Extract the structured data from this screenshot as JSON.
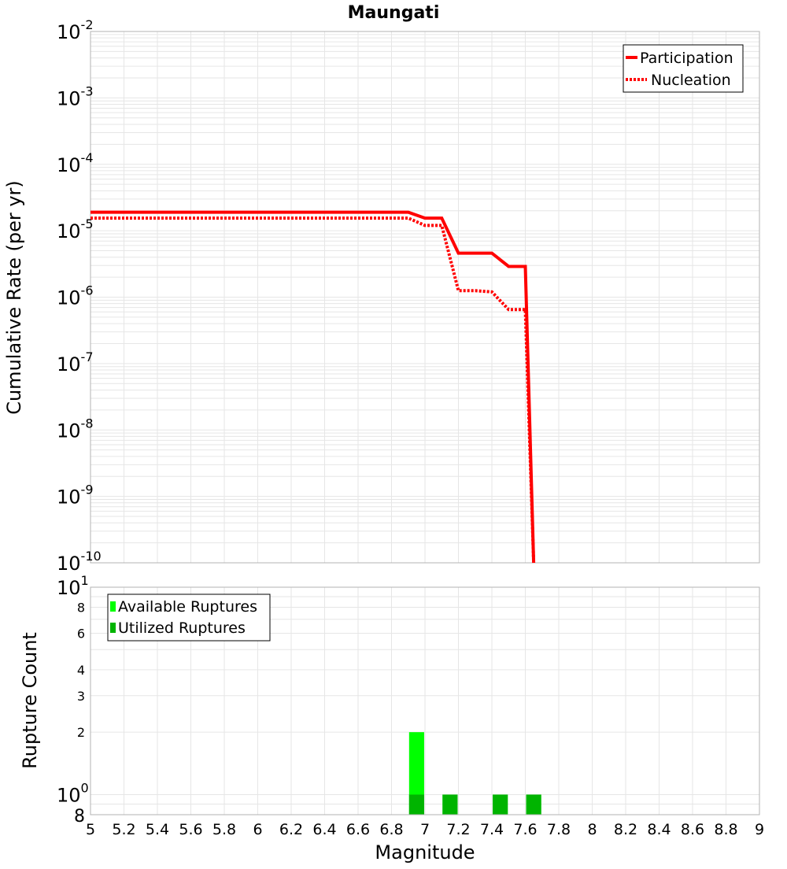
{
  "title": "Maungati",
  "colors": {
    "participation": "#ff0000",
    "nucleation": "#ff0000",
    "available": "#00ff00",
    "utilized": "#00b400",
    "grid": "#e6e6e6",
    "frame": "#b3b3b3"
  },
  "chart_data": [
    {
      "type": "line",
      "title": "Maungati",
      "xlabel": "",
      "ylabel": "Cumulative Rate (per yr)",
      "yscale": "log",
      "xlim": [
        5,
        9
      ],
      "ylim": [
        1e-10,
        0.01
      ],
      "grid": true,
      "legend_position": "top-right",
      "y_tick_labels": [
        {
          "base": "10",
          "exp": "-10"
        },
        {
          "base": "10",
          "exp": "-9"
        },
        {
          "base": "10",
          "exp": "-8"
        },
        {
          "base": "10",
          "exp": "-7"
        },
        {
          "base": "10",
          "exp": "-6"
        },
        {
          "base": "10",
          "exp": "-5"
        },
        {
          "base": "10",
          "exp": "-4"
        },
        {
          "base": "10",
          "exp": "-3"
        },
        {
          "base": "10",
          "exp": "-2"
        }
      ],
      "series": [
        {
          "name": "Participation",
          "style": "solid",
          "x": [
            5.0,
            6.9,
            7.0,
            7.1,
            7.2,
            7.3,
            7.4,
            7.5,
            7.6,
            7.65
          ],
          "y": [
            1.9e-05,
            1.9e-05,
            1.55e-05,
            1.55e-05,
            4.6e-06,
            4.6e-06,
            4.6e-06,
            2.9e-06,
            2.9e-06,
            1e-10
          ]
        },
        {
          "name": "Nucleation",
          "style": "dotted",
          "x": [
            5.0,
            6.9,
            7.0,
            7.1,
            7.2,
            7.3,
            7.4,
            7.5,
            7.6,
            7.65
          ],
          "y": [
            1.55e-05,
            1.55e-05,
            1.2e-05,
            1.2e-05,
            1.25e-06,
            1.25e-06,
            1.2e-06,
            6.5e-07,
            6.5e-07,
            1e-10
          ]
        }
      ]
    },
    {
      "type": "bar",
      "xlabel": "Magnitude",
      "ylabel": "Rupture Count",
      "yscale": "log",
      "xlim": [
        5,
        9
      ],
      "ylim": [
        0.8,
        10
      ],
      "grid": true,
      "legend_position": "top-left",
      "x_ticks": [
        "5",
        "5.2",
        "5.4",
        "5.6",
        "5.8",
        "6",
        "6.2",
        "6.4",
        "6.6",
        "6.8",
        "7",
        "7.2",
        "7.4",
        "7.6",
        "7.8",
        "8",
        "8.2",
        "8.4",
        "8.6",
        "8.8",
        "9"
      ],
      "y_minor_labels": [
        {
          "value": 2,
          "label": "2"
        },
        {
          "value": 3,
          "label": "3"
        },
        {
          "value": 4,
          "label": "4"
        },
        {
          "value": 6,
          "label": "6"
        },
        {
          "value": 8,
          "label": "8"
        }
      ],
      "y_major_labels": [
        {
          "value": 1,
          "base": "10",
          "exp": "0"
        },
        {
          "value": 10,
          "base": "10",
          "exp": "1"
        }
      ],
      "y_bottom_label": {
        "value": 0.8,
        "label": "8"
      },
      "bar_width": 0.09,
      "series": [
        {
          "name": "Available Ruptures",
          "x": [
            6.95,
            7.15,
            7.45,
            7.65
          ],
          "values": [
            2,
            1,
            1,
            1
          ]
        },
        {
          "name": "Utilized Ruptures",
          "x": [
            6.95,
            7.15,
            7.45,
            7.65
          ],
          "values": [
            1,
            1,
            1,
            1
          ]
        }
      ]
    }
  ]
}
